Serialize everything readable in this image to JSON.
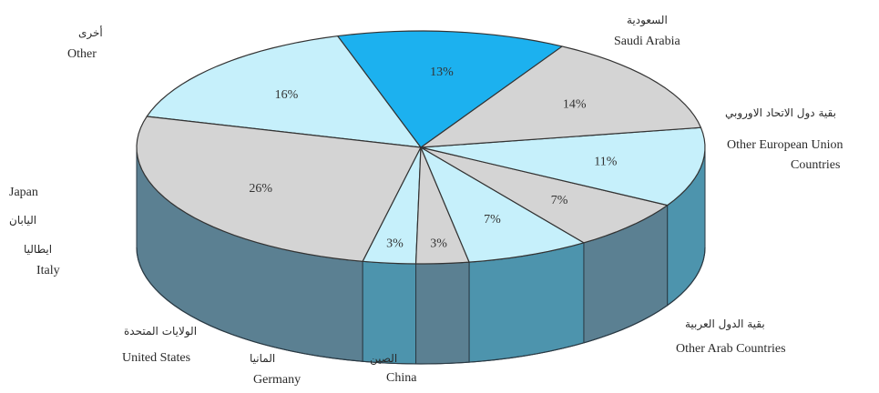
{
  "chart_data": {
    "type": "pie",
    "style": "3d",
    "title": "",
    "start_angle_deg": 107,
    "direction": "counterclockwise",
    "slices": [
      {
        "label_en": "Saudi Arabia",
        "label_ar": "السعودية",
        "value": 16,
        "value_label": "16%",
        "color": "#c6f0fb"
      },
      {
        "label_en": "Other",
        "label_ar": "أخرى",
        "value": 26,
        "value_label": "26%",
        "color": "#d4d4d4"
      },
      {
        "label_en": "Japan",
        "label_ar": "اليابان",
        "value": 3,
        "value_label": "3%",
        "color": "#c6f0fb"
      },
      {
        "label_en": "Italy",
        "label_ar": "ايطاليا",
        "value": 3,
        "value_label": "3%",
        "color": "#d4d4d4"
      },
      {
        "label_en": "United States",
        "label_ar": "الولايات المتحدة",
        "value": 7,
        "value_label": "7%",
        "color": "#c6f0fb"
      },
      {
        "label_en": "Germany",
        "label_ar": "المانيا",
        "value": 7,
        "value_label": "7%",
        "color": "#d4d4d4"
      },
      {
        "label_en": "China",
        "label_ar": "الصين",
        "value": 11,
        "value_label": "11%",
        "color": "#c6f0fb"
      },
      {
        "label_en": "Other Arab Countries",
        "label_ar": "بقية الدول العربية",
        "value": 14,
        "value_label": "14%",
        "color": "#d4d4d4"
      },
      {
        "label_en": "Other European Union Countries",
        "label_ar": "بقية دول الاتحاد الاوروبي",
        "value": 13,
        "value_label": "13%",
        "color": "#1cb1ef"
      }
    ],
    "side_colors": {
      "cyan": "#4d94ad",
      "gray": "#5b8092",
      "blue": "#2f87b3"
    }
  }
}
